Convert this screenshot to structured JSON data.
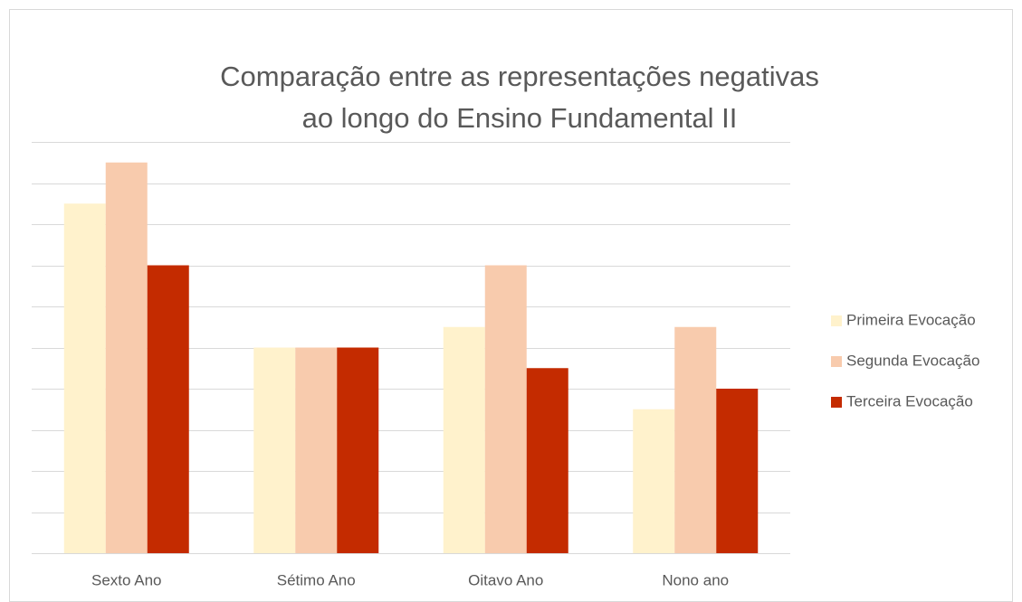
{
  "chart_data": {
    "type": "bar",
    "title": "Comparação entre as representações negativas  ao longo do Ensino Fundamental II",
    "categories": [
      "Sexto Ano",
      "Sétimo Ano",
      "Oitavo Ano",
      "Nono ano"
    ],
    "series": [
      {
        "name": "Primeira Evocação",
        "color": "#fff2cc",
        "values": [
          8.5,
          5,
          5.5,
          3.5
        ]
      },
      {
        "name": "Segunda Evocação",
        "color": "#f8cbad",
        "values": [
          9.5,
          5,
          7,
          5.5
        ]
      },
      {
        "name": "Terceira Evocação",
        "color": "#c42b00",
        "values": [
          7,
          5,
          4.5,
          4
        ]
      }
    ],
    "ylim": [
      0,
      10
    ],
    "yticks": [
      0,
      1,
      2,
      3,
      4,
      5,
      6,
      7,
      8,
      9,
      10
    ],
    "grid": true,
    "legend": "right"
  }
}
